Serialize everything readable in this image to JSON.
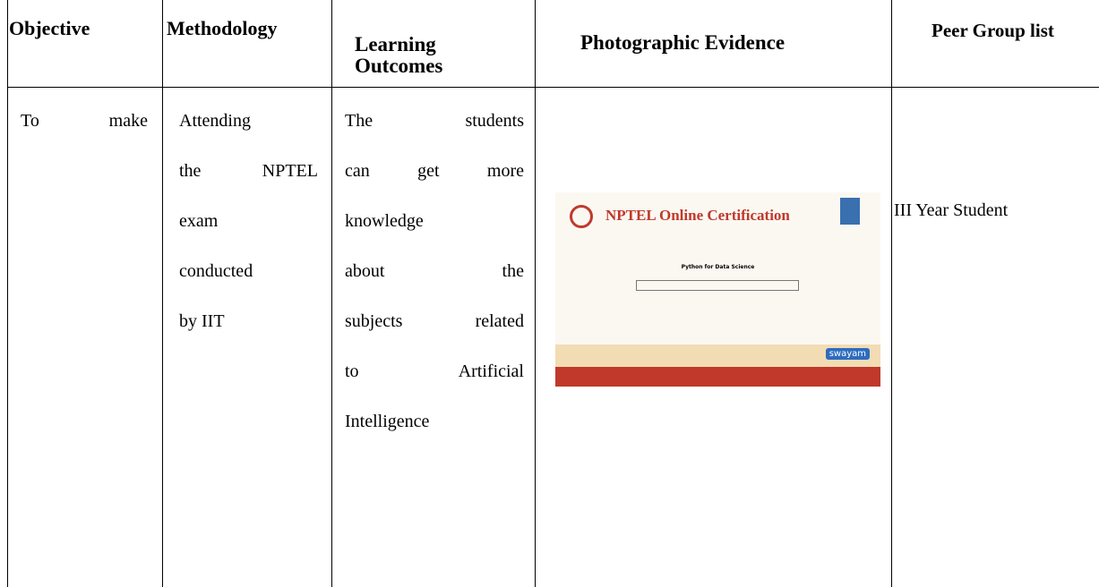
{
  "table": {
    "headers": [
      "Objective",
      "Methodology",
      "Learning Outcomes",
      "Photographic Evidence",
      "Peer Group list"
    ],
    "row": {
      "objective": [
        "To make"
      ],
      "methodology": [
        "Attending",
        "the NPTEL",
        "exam",
        "conducted",
        "by IIT"
      ],
      "outcomes": [
        "The students",
        "can get more",
        "knowledge",
        "about the",
        "subjects related",
        "to Artificial",
        "Intelligence"
      ],
      "peer": "III Year Student"
    }
  },
  "certificate": {
    "title": "NPTEL Online Certification",
    "course": "Python for Data Science",
    "brand": "swayam"
  }
}
